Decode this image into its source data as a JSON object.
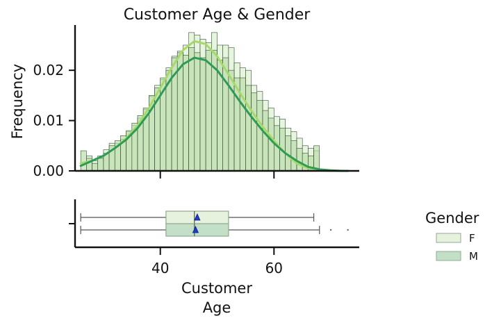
{
  "chart_data": {
    "type": "histogram",
    "title": "Customer Age & Gender",
    "ylabel": "Frequency",
    "xlabel_line1": "Customer",
    "xlabel_line2": "Age",
    "legend_title": "Gender",
    "legend_placement": "right",
    "grid": false,
    "x_ticks": [
      40,
      60
    ],
    "y_ticks": [
      0.0,
      0.01,
      0.02
    ],
    "y_tick_labels": [
      "0.00",
      "0.01",
      "0.02"
    ],
    "xlim": [
      25,
      75
    ],
    "ylim": [
      0,
      0.029
    ],
    "bin_edges_start": 26,
    "bin_width": 1,
    "series": [
      {
        "name": "F",
        "color": "#dff0d3",
        "kde_color": "#a6d96a",
        "values": [
          0.0,
          0.003,
          0.002,
          0.003,
          0.0042,
          0.0055,
          0.0055,
          0.0063,
          0.0078,
          0.009,
          0.0105,
          0.0122,
          0.0148,
          0.017,
          0.0182,
          0.0205,
          0.0228,
          0.0238,
          0.025,
          0.0275,
          0.027,
          0.0262,
          0.0255,
          0.0275,
          0.025,
          0.025,
          0.0245,
          0.0215,
          0.0205,
          0.02,
          0.017,
          0.0158,
          0.014,
          0.0125,
          0.0108,
          0.0103,
          0.0085,
          0.0078,
          0.0065,
          0.005,
          0.0045,
          0.004
        ]
      },
      {
        "name": "M",
        "color": "#b8dca7",
        "kde_color": "#2f9a56",
        "values": [
          0.004,
          0.0025,
          0.0015,
          0.0025,
          0.0035,
          0.005,
          0.006,
          0.007,
          0.008,
          0.0095,
          0.011,
          0.0125,
          0.015,
          0.0165,
          0.0185,
          0.02,
          0.0225,
          0.0235,
          0.023,
          0.0245,
          0.0235,
          0.0225,
          0.024,
          0.024,
          0.022,
          0.0225,
          0.02,
          0.0185,
          0.0185,
          0.017,
          0.0155,
          0.014,
          0.012,
          0.0105,
          0.009,
          0.0085,
          0.007,
          0.006,
          0.0045,
          0.0035,
          0.003,
          0.005
        ]
      }
    ],
    "kde": {
      "x": [
        26,
        28,
        30,
        32,
        34,
        36,
        38,
        40,
        42,
        44,
        46,
        48,
        50,
        52,
        54,
        56,
        58,
        60,
        62,
        64,
        66,
        68,
        70,
        72,
        73
      ],
      "F": [
        0.0015,
        0.002,
        0.003,
        0.0045,
        0.0065,
        0.009,
        0.0125,
        0.0165,
        0.0205,
        0.024,
        0.0258,
        0.0252,
        0.0228,
        0.0192,
        0.0155,
        0.012,
        0.0088,
        0.006,
        0.0035,
        0.0015,
        0.0005,
        0.0001,
        0.0,
        0.0,
        0.0
      ],
      "M": [
        0.001,
        0.002,
        0.003,
        0.0045,
        0.0062,
        0.0085,
        0.0115,
        0.015,
        0.0185,
        0.0212,
        0.0225,
        0.022,
        0.02,
        0.017,
        0.0138,
        0.0108,
        0.008,
        0.0055,
        0.0035,
        0.002,
        0.0008,
        0.0003,
        0.0001,
        0.0,
        0.0
      ]
    },
    "boxplots": [
      {
        "name": "F",
        "whisker_low": 26,
        "q1": 41,
        "median": 46,
        "mean": 46.5,
        "q3": 52,
        "whisker_high": 67,
        "outliers": [],
        "color": "#e6f1de"
      },
      {
        "name": "M",
        "whisker_low": 26,
        "q1": 41,
        "median": 46,
        "mean": 46.2,
        "q3": 52,
        "whisker_high": 68,
        "outliers": [
          70,
          73
        ],
        "color": "#c3dfc8"
      }
    ]
  }
}
